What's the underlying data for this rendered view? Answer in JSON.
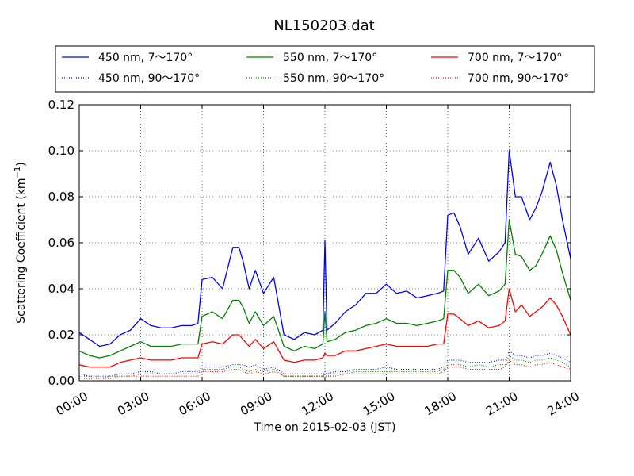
{
  "chart_data": {
    "type": "line",
    "title": "NL150203.dat",
    "xlabel": "Time on 2015-02-03 (JST)",
    "ylabel": "Scattering Coefficient (km",
    "ylabel_sup": "−1",
    "ylabel_close": ")",
    "xlim": [
      0,
      24
    ],
    "ylim": [
      0,
      0.12
    ],
    "x_ticks": [
      0,
      3,
      6,
      9,
      12,
      15,
      18,
      21,
      24
    ],
    "x_tick_labels": [
      "00:00",
      "03:00",
      "06:00",
      "09:00",
      "12:00",
      "15:00",
      "18:00",
      "21:00",
      "24:00"
    ],
    "y_ticks": [
      0,
      0.02,
      0.04,
      0.06,
      0.08,
      0.1,
      0.12
    ],
    "y_tick_labels": [
      "0.00",
      "0.02",
      "0.04",
      "0.06",
      "0.08",
      "0.10",
      "0.12"
    ],
    "grid": true,
    "legend_position": "top",
    "x": [
      0,
      0.5,
      1,
      1.5,
      2,
      2.5,
      3,
      3.5,
      4,
      4.5,
      5,
      5.5,
      5.8,
      6,
      6.5,
      7,
      7.5,
      7.8,
      8,
      8.3,
      8.6,
      9,
      9.5,
      10,
      10.5,
      11,
      11.5,
      11.9,
      12,
      12.1,
      12.5,
      13,
      13.5,
      14,
      14.5,
      15,
      15.5,
      16,
      16.5,
      17,
      17.5,
      17.8,
      18,
      18.3,
      18.6,
      19,
      19.5,
      20,
      20.5,
      20.8,
      21,
      21.3,
      21.6,
      22,
      22.3,
      22.6,
      23,
      23.3,
      23.6,
      24
    ],
    "series": [
      {
        "name": "450 nm, 7～170°",
        "color": "#0000ff",
        "style": "solid",
        "values": [
          0.021,
          0.018,
          0.015,
          0.016,
          0.02,
          0.022,
          0.027,
          0.024,
          0.023,
          0.023,
          0.024,
          0.024,
          0.025,
          0.044,
          0.045,
          0.04,
          0.058,
          0.058,
          0.052,
          0.04,
          0.048,
          0.038,
          0.045,
          0.02,
          0.018,
          0.021,
          0.02,
          0.022,
          0.061,
          0.022,
          0.025,
          0.03,
          0.033,
          0.038,
          0.038,
          0.042,
          0.038,
          0.039,
          0.036,
          0.037,
          0.038,
          0.039,
          0.072,
          0.073,
          0.067,
          0.055,
          0.062,
          0.052,
          0.056,
          0.06,
          0.1,
          0.08,
          0.08,
          0.07,
          0.075,
          0.082,
          0.095,
          0.085,
          0.07,
          0.053
        ]
      },
      {
        "name": "550 nm, 7～170°",
        "color": "#008000",
        "style": "solid",
        "values": [
          0.013,
          0.011,
          0.01,
          0.011,
          0.013,
          0.015,
          0.017,
          0.015,
          0.015,
          0.015,
          0.016,
          0.016,
          0.016,
          0.028,
          0.03,
          0.027,
          0.035,
          0.035,
          0.032,
          0.025,
          0.03,
          0.024,
          0.028,
          0.015,
          0.013,
          0.015,
          0.014,
          0.016,
          0.03,
          0.017,
          0.018,
          0.021,
          0.022,
          0.024,
          0.025,
          0.027,
          0.025,
          0.025,
          0.024,
          0.025,
          0.026,
          0.027,
          0.048,
          0.048,
          0.045,
          0.038,
          0.042,
          0.037,
          0.039,
          0.042,
          0.07,
          0.055,
          0.054,
          0.048,
          0.05,
          0.055,
          0.063,
          0.057,
          0.047,
          0.035
        ]
      },
      {
        "name": "700 nm, 7～170°",
        "color": "#ff0000",
        "style": "solid",
        "values": [
          0.007,
          0.006,
          0.006,
          0.006,
          0.008,
          0.009,
          0.01,
          0.009,
          0.009,
          0.009,
          0.01,
          0.01,
          0.01,
          0.016,
          0.017,
          0.016,
          0.02,
          0.02,
          0.018,
          0.015,
          0.018,
          0.014,
          0.017,
          0.009,
          0.008,
          0.009,
          0.009,
          0.01,
          0.012,
          0.011,
          0.011,
          0.013,
          0.013,
          0.014,
          0.015,
          0.016,
          0.015,
          0.015,
          0.015,
          0.015,
          0.016,
          0.016,
          0.029,
          0.029,
          0.027,
          0.024,
          0.026,
          0.023,
          0.024,
          0.026,
          0.04,
          0.03,
          0.033,
          0.028,
          0.03,
          0.032,
          0.036,
          0.033,
          0.028,
          0.02
        ]
      },
      {
        "name": "450 nm, 90～170°",
        "color": "#0000ff",
        "style": "dotted",
        "values": [
          0.003,
          0.002,
          0.002,
          0.002,
          0.003,
          0.003,
          0.004,
          0.004,
          0.003,
          0.003,
          0.004,
          0.004,
          0.004,
          0.006,
          0.006,
          0.006,
          0.007,
          0.007,
          0.007,
          0.006,
          0.007,
          0.005,
          0.006,
          0.003,
          0.003,
          0.003,
          0.003,
          0.003,
          0.004,
          0.003,
          0.004,
          0.004,
          0.005,
          0.005,
          0.005,
          0.006,
          0.005,
          0.005,
          0.005,
          0.005,
          0.005,
          0.006,
          0.009,
          0.009,
          0.009,
          0.008,
          0.008,
          0.008,
          0.009,
          0.009,
          0.013,
          0.011,
          0.011,
          0.01,
          0.011,
          0.011,
          0.012,
          0.011,
          0.01,
          0.008
        ]
      },
      {
        "name": "550 nm, 90～170°",
        "color": "#008000",
        "style": "dotted",
        "values": [
          0.002,
          0.002,
          0.001,
          0.002,
          0.002,
          0.002,
          0.003,
          0.003,
          0.003,
          0.003,
          0.003,
          0.003,
          0.003,
          0.005,
          0.005,
          0.005,
          0.006,
          0.006,
          0.005,
          0.004,
          0.005,
          0.004,
          0.005,
          0.002,
          0.002,
          0.002,
          0.002,
          0.002,
          0.003,
          0.003,
          0.003,
          0.003,
          0.004,
          0.004,
          0.004,
          0.004,
          0.004,
          0.004,
          0.004,
          0.004,
          0.004,
          0.005,
          0.007,
          0.007,
          0.007,
          0.006,
          0.007,
          0.006,
          0.007,
          0.007,
          0.011,
          0.009,
          0.009,
          0.008,
          0.009,
          0.009,
          0.01,
          0.009,
          0.008,
          0.006
        ]
      },
      {
        "name": "700 nm, 90～170°",
        "color": "#ff0000",
        "style": "dotted",
        "values": [
          0.001,
          0.001,
          0.001,
          0.001,
          0.002,
          0.002,
          0.002,
          0.002,
          0.002,
          0.002,
          0.002,
          0.002,
          0.002,
          0.004,
          0.004,
          0.004,
          0.005,
          0.005,
          0.004,
          0.003,
          0.004,
          0.003,
          0.004,
          0.002,
          0.002,
          0.002,
          0.002,
          0.002,
          0.002,
          0.002,
          0.002,
          0.003,
          0.003,
          0.003,
          0.003,
          0.003,
          0.003,
          0.003,
          0.003,
          0.003,
          0.003,
          0.004,
          0.006,
          0.006,
          0.006,
          0.005,
          0.005,
          0.005,
          0.005,
          0.006,
          0.009,
          0.007,
          0.007,
          0.006,
          0.007,
          0.007,
          0.008,
          0.007,
          0.006,
          0.005
        ]
      }
    ]
  }
}
